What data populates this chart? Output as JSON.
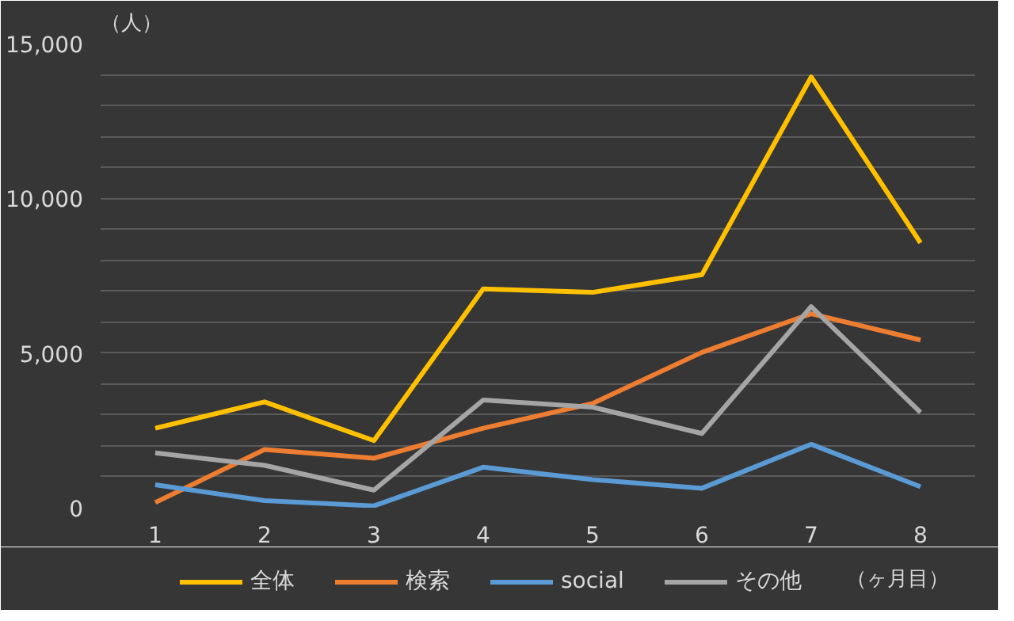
{
  "chart_data": {
    "type": "line",
    "ylabel": "（人）",
    "xlabel": "（ヶ月目）",
    "categories": [
      "1",
      "2",
      "3",
      "4",
      "5",
      "6",
      "7",
      "8"
    ],
    "series": [
      {
        "name": "全体",
        "color": "#ffc000",
        "values": [
          2570,
          3420,
          2170,
          7070,
          6960,
          7530,
          13920,
          8560
        ]
      },
      {
        "name": "検索",
        "color": "#ed7d31",
        "values": [
          170,
          1880,
          1600,
          2570,
          3370,
          5020,
          6270,
          5420
        ]
      },
      {
        "name": "social",
        "color": "#5b9bd5",
        "values": [
          740,
          230,
          60,
          1310,
          910,
          630,
          2050,
          680
        ]
      },
      {
        "name": "その他",
        "color": "#a5a5a5",
        "values": [
          1770,
          1370,
          570,
          3480,
          3250,
          2400,
          6500,
          3080
        ]
      }
    ],
    "ylim": [
      0,
      15000
    ],
    "yticks": [
      0,
      {
        "value": 1000,
        "label": null
      },
      {
        "value": 2000,
        "label": null
      },
      {
        "value": 3000,
        "label": null
      },
      {
        "value": 4000,
        "label": null
      },
      {
        "value": 5000,
        "label": "5,000"
      },
      {
        "value": 6000,
        "label": null
      },
      {
        "value": 7000,
        "label": null
      },
      {
        "value": 8000,
        "label": null
      },
      {
        "value": 9000,
        "label": null
      },
      {
        "value": 10000,
        "label": "10,000"
      },
      {
        "value": 11000,
        "label": null
      },
      {
        "value": 12000,
        "label": null
      },
      {
        "value": 13000,
        "label": null
      },
      {
        "value": 14000,
        "label": null
      },
      {
        "value": 15000,
        "label": "15,000"
      }
    ],
    "grid": "y",
    "legend": "bottom",
    "marker": "none",
    "line_style": "solid"
  }
}
